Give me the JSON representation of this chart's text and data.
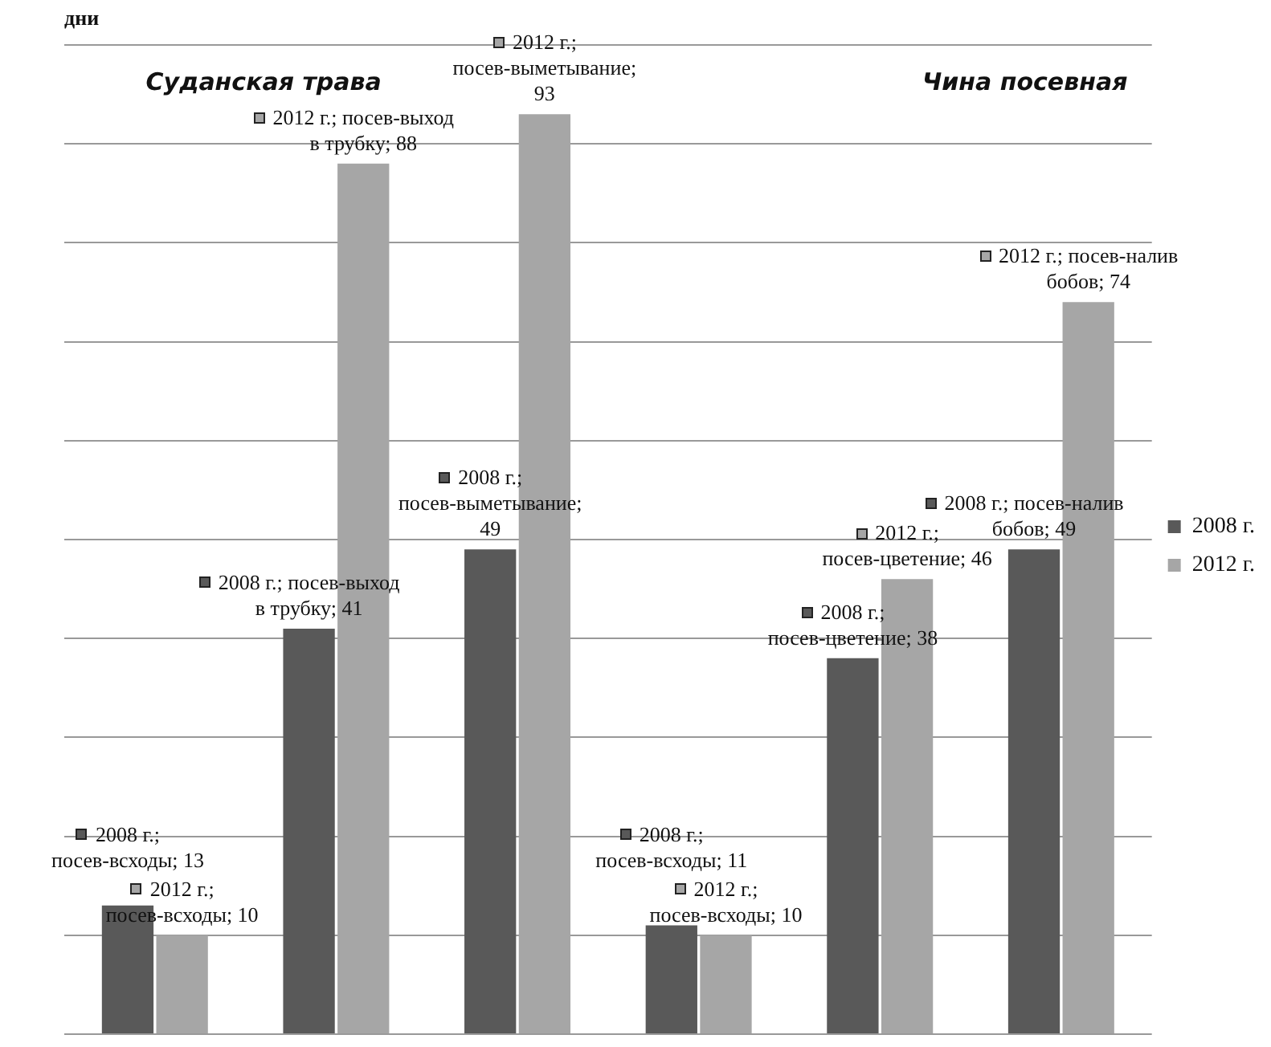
{
  "chart_data": {
    "type": "bar",
    "ylabel": "дни",
    "categories": [
      null,
      null,
      null,
      null,
      null,
      null
    ],
    "series": [
      {
        "name": "2008 г.",
        "color": "#595959",
        "values": [
          13,
          41,
          49,
          11,
          38,
          49
        ],
        "value_labels": [
          "2008 г.; посев-всходы; 13",
          "2008 г.; посев-выход в трубку; 41",
          "2008 г.; посев-выметывание; 49",
          "2008 г.; посев-всходы; 11",
          "2008 г.; посев-цветение; 38",
          "2008 г.; посев-налив бобов; 49"
        ]
      },
      {
        "name": "2012 г.",
        "color": "#a6a6a6",
        "values": [
          10,
          88,
          93,
          10,
          46,
          74
        ],
        "value_labels": [
          "2012 г.; посев-всходы; 10",
          "2012 г.; посев-выход в трубку; 88",
          "2012 г.; посев-выметывание; 93",
          "2012 г.; посев-всходы; 10",
          "2012 г.; посев-цветение; 46",
          "2012 г.; посев-налив бобов; 74"
        ]
      }
    ],
    "grid": "y",
    "legend": "right",
    "tick_labels": false,
    "annotations": [
      "Суданская трава",
      "Чина посевная"
    ]
  }
}
